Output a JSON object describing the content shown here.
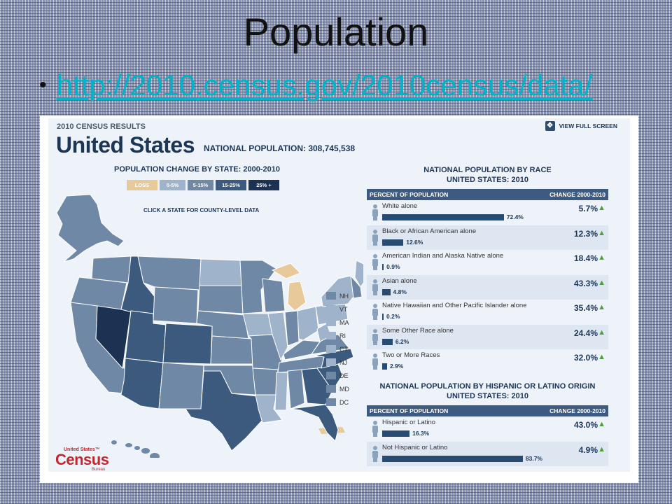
{
  "slide": {
    "title": "Population",
    "bullet": "•",
    "link": "http://2010.census.gov/2010census/data/"
  },
  "panel": {
    "census_results": "2010 CENSUS RESULTS",
    "country": "United States",
    "national_population_label": "NATIONAL POPULATION: 308,745,538",
    "view_full_screen": "VIEW FULL SCREEN",
    "expand_icon": "expand-icon",
    "map": {
      "title": "POPULATION CHANGE BY STATE: 2000-2010",
      "legend": [
        {
          "label": "LOSS",
          "color": "#e8c99a"
        },
        {
          "label": "0-5%",
          "color": "#9fb3ca"
        },
        {
          "label": "5-15%",
          "color": "#6e88a6"
        },
        {
          "label": "15-25%",
          "color": "#3b5a7e"
        },
        {
          "label": "25% +",
          "color": "#1b3252"
        }
      ],
      "click_note": "CLICK A STATE FOR COUNTY-LEVEL DATA",
      "small_states": [
        {
          "label": "NH",
          "color": "#6e88a6"
        },
        {
          "label": "VT",
          "color": "#9fb3ca"
        },
        {
          "label": "MA",
          "color": "#9fb3ca"
        },
        {
          "label": "RI",
          "color": "#9fb3ca"
        },
        {
          "label": "CT",
          "color": "#9fb3ca"
        },
        {
          "label": "NJ",
          "color": "#9fb3ca"
        },
        {
          "label": "DE",
          "color": "#6e88a6"
        },
        {
          "label": "MD",
          "color": "#6e88a6"
        },
        {
          "label": "DC",
          "color": "#6e88a6"
        }
      ]
    },
    "race": {
      "title_line1": "NATIONAL POPULATION BY RACE",
      "title_line2": "UNITED STATES: 2010",
      "col_left": "PERCENT OF POPULATION",
      "col_right": "CHANGE 2000-2010",
      "rows": [
        {
          "label": "White alone",
          "pct": 72.4,
          "pct_text": "72.4%",
          "change": "5.7%"
        },
        {
          "label": "Black or African American alone",
          "pct": 12.6,
          "pct_text": "12.6%",
          "change": "12.3%"
        },
        {
          "label": "American Indian and Alaska Native alone",
          "pct": 0.9,
          "pct_text": "0.9%",
          "change": "18.4%"
        },
        {
          "label": "Asian alone",
          "pct": 4.8,
          "pct_text": "4.8%",
          "change": "43.3%"
        },
        {
          "label": "Native Hawaiian and Other Pacific Islander alone",
          "pct": 0.2,
          "pct_text": "0.2%",
          "change": "35.4%"
        },
        {
          "label": "Some Other Race alone",
          "pct": 6.2,
          "pct_text": "6.2%",
          "change": "24.4%"
        },
        {
          "label": "Two or More Races",
          "pct": 2.9,
          "pct_text": "2.9%",
          "change": "32.0%"
        }
      ]
    },
    "hispanic": {
      "title_line1": "NATIONAL POPULATION BY HISPANIC OR LATINO ORIGIN",
      "title_line2": "UNITED STATES: 2010",
      "col_left": "PERCENT OF POPULATION",
      "col_right": "CHANGE 2000-2010",
      "rows": [
        {
          "label": "Hispanic or Latino",
          "pct": 16.3,
          "pct_text": "16.3%",
          "change": "43.0%"
        },
        {
          "label": "Not Hispanic or Latino",
          "pct": 83.7,
          "pct_text": "83.7%",
          "change": "4.9%"
        }
      ]
    },
    "arrow_glyph": "🠅",
    "logo": {
      "top": "United States™",
      "main": "Census",
      "bottom": "Bureau"
    }
  }
}
